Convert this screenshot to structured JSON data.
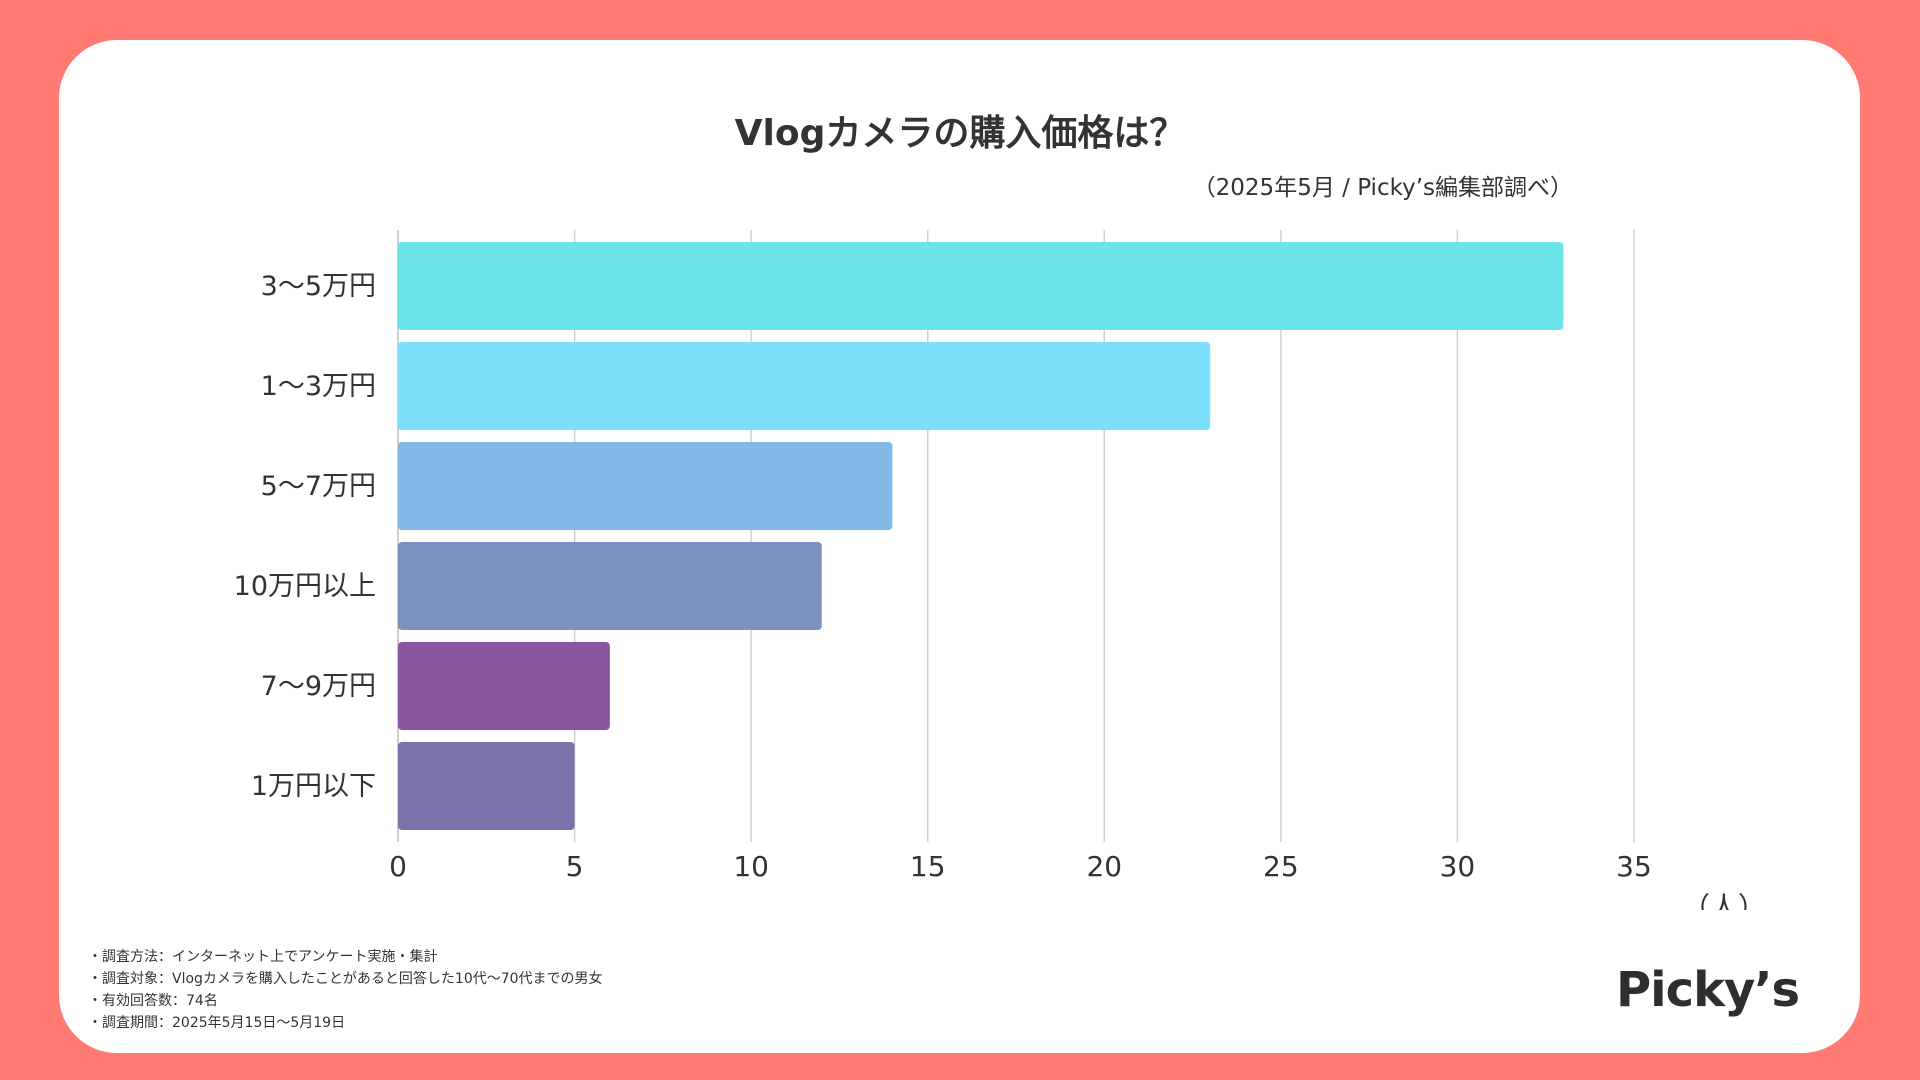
{
  "chart_data": {
    "type": "bar",
    "orientation": "horizontal",
    "title": "Vlogカメラの購入価格は？",
    "subtitle": "（2025年5月 / Picky’s編集部調べ）",
    "categories": [
      "3〜5万円",
      "1〜3万円",
      "5〜7万円",
      "10万円以上",
      "7〜9万円",
      "1万円以下"
    ],
    "values": [
      33,
      23,
      14,
      12,
      6,
      5
    ],
    "colors": [
      "#6be4e8",
      "#7cdffc",
      "#80b9e6",
      "#7b92c1",
      "#8b559f",
      "#7a72ab"
    ],
    "xlim": [
      0,
      35
    ],
    "xticks": [
      0,
      5,
      10,
      15,
      20,
      25,
      30,
      35
    ],
    "xlabel": "（人）",
    "grid": true
  },
  "notes": [
    "・調査方法：インターネット上でアンケート実施・集計",
    "・調査対象：Vlogカメラを購入したことがあると回答した10代〜70代までの男女",
    "・有効回答数：74名",
    "・調査期間：2025年5月15日〜5月19日"
  ],
  "logo": "Picky’s"
}
